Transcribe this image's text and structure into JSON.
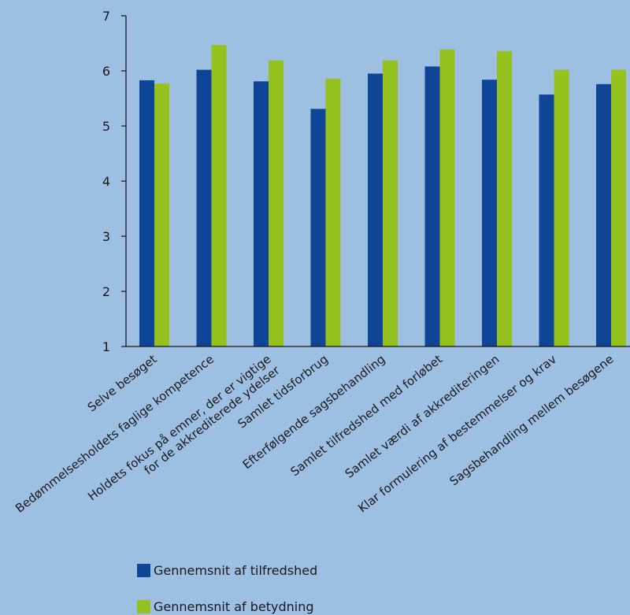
{
  "chart_data": {
    "type": "bar",
    "categories": [
      "Selve besøget",
      "Bedømmelsesholdets faglige kompetence",
      "Holdets fokus på emner, der er vigtige\nfor de akkrediterede ydelser",
      "Samlet tidsforbrug",
      "Efterfølgende sagsbehandling",
      "Samlet tilfredshed med forløbet",
      "Samlet værdi af akkrediteringen",
      "Klar formulering af bestemmelser og krav",
      "Sagsbehandling mellem besøgene"
    ],
    "series": [
      {
        "name": "Gennemsnit af tilfredshed",
        "color": "#0f4596",
        "values": [
          5.83,
          6.02,
          5.81,
          5.31,
          5.95,
          6.08,
          5.84,
          5.57,
          5.76
        ]
      },
      {
        "name": "Gennemsnit af betydning",
        "color": "#95c11f",
        "values": [
          5.77,
          6.47,
          6.19,
          5.86,
          6.19,
          6.39,
          6.36,
          6.02,
          6.02
        ]
      }
    ],
    "ylim": [
      1,
      7
    ],
    "yticks": [
      1,
      2,
      3,
      4,
      5,
      6,
      7
    ],
    "grid": false,
    "legend_position": "bottom-left"
  }
}
